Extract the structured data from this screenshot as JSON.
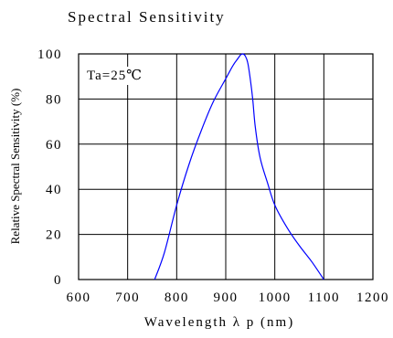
{
  "chart_data": {
    "type": "line",
    "title": "Spectral Sensitivity",
    "xlabel": "Wavelength λ p (nm)",
    "ylabel": "Relative Spectral Sensitivity (%)",
    "annotation": "Ta=25℃",
    "xlim": [
      600,
      1200
    ],
    "ylim": [
      0,
      100
    ],
    "xticks": [
      "600",
      "700",
      "800",
      "900",
      "1000",
      "1100",
      "1200"
    ],
    "yticks": [
      "0",
      "20",
      "40",
      "60",
      "80",
      "100"
    ],
    "grid": true,
    "series": [
      {
        "color": "#0000ff",
        "x": [
          755,
          775,
          800,
          825,
          850,
          875,
          900,
          915,
          925,
          930,
          935,
          940,
          945,
          950,
          955,
          960,
          970,
          985,
          1000,
          1025,
          1050,
          1075,
          1100
        ],
        "y": [
          0,
          12,
          33,
          51,
          66,
          79,
          89,
          95,
          98,
          99.5,
          100,
          99,
          96,
          89,
          80,
          68,
          54,
          43,
          33,
          23,
          15,
          8,
          0
        ]
      }
    ]
  },
  "colors": {
    "curve": "#0000ff",
    "axes": "#000000"
  }
}
